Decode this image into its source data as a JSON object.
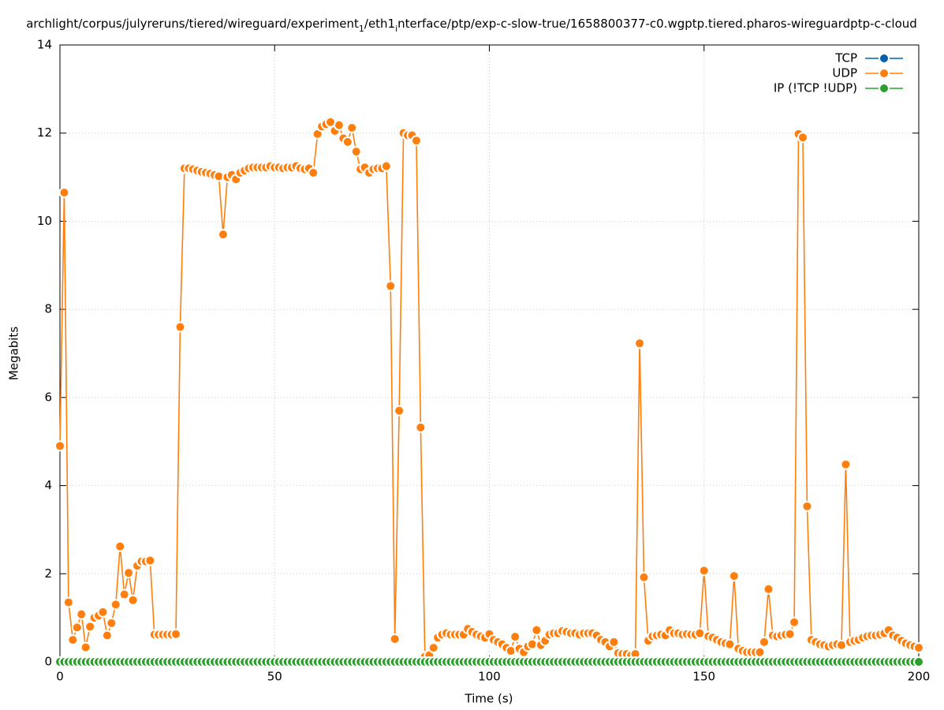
{
  "chart_data": {
    "type": "line",
    "title": [
      "archlight/corpus/julyreruns/tiered/wireguard/experiment",
      "1",
      "/eth1",
      "i",
      "nterface/ptp/exp-c-slow-true/1658800377-c0.wgptp.tiered.pharos-wireguardptp-c-cloud"
    ],
    "x_label": "Time (s)",
    "y_label": "Megabits",
    "xlim": [
      0,
      200
    ],
    "xticks": [
      0,
      50,
      100,
      150,
      200
    ],
    "ylim": [
      0,
      14
    ],
    "yticks": [
      0,
      2,
      4,
      6,
      8,
      10,
      12,
      14
    ],
    "grid": true,
    "legend": "top-right",
    "x": [
      0,
      1,
      2,
      3,
      4,
      5,
      6,
      7,
      8,
      9,
      10,
      11,
      12,
      13,
      14,
      15,
      16,
      17,
      18,
      19,
      20,
      21,
      22,
      23,
      24,
      25,
      26,
      27,
      28,
      29,
      30,
      31,
      32,
      33,
      34,
      35,
      36,
      37,
      38,
      39,
      40,
      41,
      42,
      43,
      44,
      45,
      46,
      47,
      48,
      49,
      50,
      51,
      52,
      53,
      54,
      55,
      56,
      57,
      58,
      59,
      60,
      61,
      62,
      63,
      64,
      65,
      66,
      67,
      68,
      69,
      70,
      71,
      72,
      73,
      74,
      75,
      76,
      77,
      78,
      79,
      80,
      81,
      82,
      83,
      84,
      85,
      86,
      87,
      88,
      89,
      90,
      91,
      92,
      93,
      94,
      95,
      96,
      97,
      98,
      99,
      100,
      101,
      102,
      103,
      104,
      105,
      106,
      107,
      108,
      109,
      110,
      111,
      112,
      113,
      114,
      115,
      116,
      117,
      118,
      119,
      120,
      121,
      122,
      123,
      124,
      125,
      126,
      127,
      128,
      129,
      130,
      131,
      132,
      133,
      134,
      135,
      136,
      137,
      138,
      139,
      140,
      141,
      142,
      143,
      144,
      145,
      146,
      147,
      148,
      149,
      150,
      151,
      152,
      153,
      154,
      155,
      156,
      157,
      158,
      159,
      160,
      161,
      162,
      163,
      164,
      165,
      166,
      167,
      168,
      169,
      170,
      171,
      172,
      173,
      174,
      175,
      176,
      177,
      178,
      179,
      180,
      181,
      182,
      183,
      184,
      185,
      186,
      187,
      188,
      189,
      190,
      191,
      192,
      193,
      194,
      195,
      196,
      197,
      198,
      199,
      200
    ],
    "series": [
      {
        "name": "TCP",
        "color": "#0060ad"
      },
      {
        "name": "UDP",
        "color": "#ff7f0e",
        "values": [
          4.9,
          10.65,
          1.35,
          0.5,
          0.78,
          1.08,
          0.33,
          0.8,
          1.0,
          1.05,
          1.13,
          0.6,
          0.88,
          1.3,
          2.62,
          1.53,
          2.02,
          1.4,
          2.18,
          2.28,
          2.28,
          2.3,
          0.62,
          0.62,
          0.62,
          0.62,
          0.62,
          0.63,
          7.6,
          11.2,
          11.2,
          11.18,
          11.15,
          11.12,
          11.1,
          11.08,
          11.05,
          11.02,
          9.7,
          11.0,
          11.05,
          10.95,
          11.1,
          11.15,
          11.2,
          11.22,
          11.22,
          11.22,
          11.22,
          11.25,
          11.22,
          11.22,
          11.2,
          11.22,
          11.22,
          11.25,
          11.2,
          11.18,
          11.2,
          11.1,
          11.98,
          12.15,
          12.2,
          12.25,
          12.05,
          12.18,
          11.88,
          11.8,
          12.12,
          11.58,
          11.18,
          11.22,
          11.1,
          11.18,
          11.2,
          11.2,
          11.25,
          8.53,
          0.52,
          5.7,
          12.0,
          11.95,
          11.95,
          11.83,
          5.32,
          0.12,
          0.15,
          0.32,
          0.55,
          0.62,
          0.65,
          0.62,
          0.62,
          0.62,
          0.62,
          0.75,
          0.68,
          0.62,
          0.58,
          0.55,
          0.63,
          0.5,
          0.45,
          0.4,
          0.32,
          0.25,
          0.57,
          0.3,
          0.22,
          0.35,
          0.4,
          0.72,
          0.38,
          0.48,
          0.62,
          0.65,
          0.65,
          0.7,
          0.68,
          0.65,
          0.65,
          0.62,
          0.65,
          0.65,
          0.65,
          0.6,
          0.5,
          0.45,
          0.35,
          0.45,
          0.2,
          0.18,
          0.18,
          0.15,
          0.18,
          7.23,
          1.92,
          0.48,
          0.58,
          0.6,
          0.62,
          0.6,
          0.72,
          0.65,
          0.65,
          0.62,
          0.63,
          0.62,
          0.62,
          0.65,
          2.07,
          0.58,
          0.55,
          0.5,
          0.45,
          0.42,
          0.4,
          1.95,
          0.3,
          0.25,
          0.22,
          0.22,
          0.22,
          0.22,
          0.45,
          1.65,
          0.6,
          0.58,
          0.6,
          0.62,
          0.63,
          0.9,
          11.98,
          11.9,
          3.53,
          0.5,
          0.45,
          0.4,
          0.38,
          0.35,
          0.38,
          0.4,
          0.38,
          4.48,
          0.45,
          0.48,
          0.5,
          0.55,
          0.58,
          0.6,
          0.6,
          0.62,
          0.65,
          0.72,
          0.6,
          0.55,
          0.48,
          0.42,
          0.38,
          0.35,
          0.32
        ]
      },
      {
        "name": "IP (!TCP  !UDP)",
        "color": "#2ca02c",
        "values": [
          0,
          0,
          0,
          0,
          0,
          0,
          0,
          0,
          0,
          0,
          0,
          0,
          0,
          0,
          0,
          0,
          0,
          0,
          0,
          0,
          0,
          0,
          0,
          0,
          0,
          0,
          0,
          0,
          0,
          0,
          0,
          0,
          0,
          0,
          0,
          0,
          0,
          0,
          0,
          0,
          0,
          0,
          0,
          0,
          0,
          0,
          0,
          0,
          0,
          0,
          0,
          0,
          0,
          0,
          0,
          0,
          0,
          0,
          0,
          0,
          0,
          0,
          0,
          0,
          0,
          0,
          0,
          0,
          0,
          0,
          0,
          0,
          0,
          0,
          0,
          0,
          0,
          0,
          0,
          0,
          0,
          0,
          0,
          0,
          0,
          0,
          0,
          0,
          0,
          0,
          0,
          0,
          0,
          0,
          0,
          0,
          0,
          0,
          0,
          0,
          0,
          0,
          0,
          0,
          0,
          0,
          0,
          0,
          0,
          0,
          0,
          0,
          0,
          0,
          0,
          0,
          0,
          0,
          0,
          0,
          0,
          0,
          0,
          0,
          0,
          0,
          0,
          0,
          0,
          0,
          0,
          0,
          0,
          0,
          0,
          0,
          0,
          0,
          0,
          0,
          0,
          0,
          0,
          0,
          0,
          0,
          0,
          0,
          0,
          0,
          0,
          0,
          0,
          0,
          0,
          0,
          0,
          0,
          0,
          0,
          0,
          0,
          0,
          0,
          0,
          0,
          0,
          0,
          0,
          0,
          0,
          0,
          0,
          0,
          0,
          0,
          0,
          0,
          0,
          0,
          0,
          0,
          0,
          0,
          0,
          0,
          0,
          0,
          0,
          0,
          0,
          0,
          0,
          0,
          0,
          0,
          0,
          0,
          0,
          0,
          0
        ]
      }
    ]
  }
}
